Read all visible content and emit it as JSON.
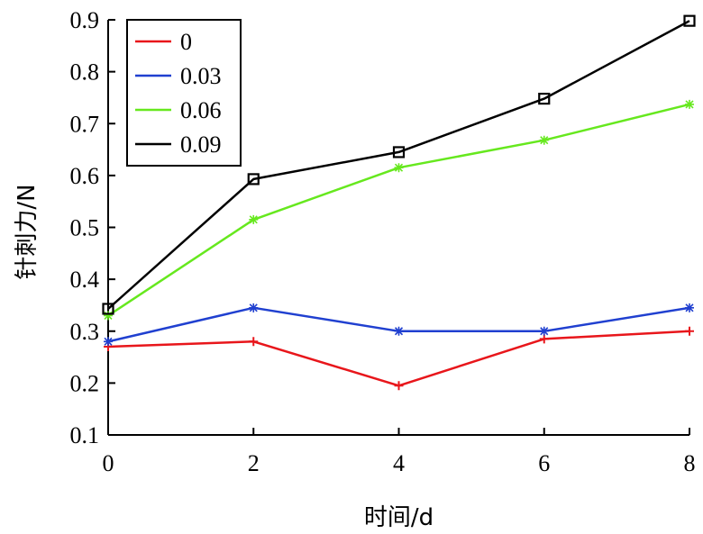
{
  "chart_data": {
    "type": "line",
    "xlabel": "时间/d",
    "ylabel": "针刺力/N",
    "x": [
      0,
      2,
      4,
      6,
      8
    ],
    "xlim": [
      0,
      8
    ],
    "ylim": [
      0.1,
      0.9
    ],
    "x_ticks": [
      "0",
      "2",
      "4",
      "6",
      "8"
    ],
    "y_ticks": [
      "0.1",
      "0.2",
      "0.3",
      "0.4",
      "0.5",
      "0.6",
      "0.7",
      "0.8",
      "0.9"
    ],
    "grid": false,
    "legend_position": "top-left",
    "series": [
      {
        "name": "0",
        "color": "#e8161b",
        "marker": "plus",
        "values": [
          0.27,
          0.28,
          0.195,
          0.285,
          0.3
        ]
      },
      {
        "name": "0.03",
        "color": "#2040d0",
        "marker": "star",
        "values": [
          0.28,
          0.345,
          0.3,
          0.3,
          0.345
        ]
      },
      {
        "name": "0.06",
        "color": "#66e81e",
        "marker": "star",
        "values": [
          0.33,
          0.515,
          0.615,
          0.668,
          0.737
        ]
      },
      {
        "name": "0.09",
        "color": "#000000",
        "marker": "square",
        "values": [
          0.343,
          0.593,
          0.645,
          0.748,
          0.898
        ]
      }
    ]
  }
}
